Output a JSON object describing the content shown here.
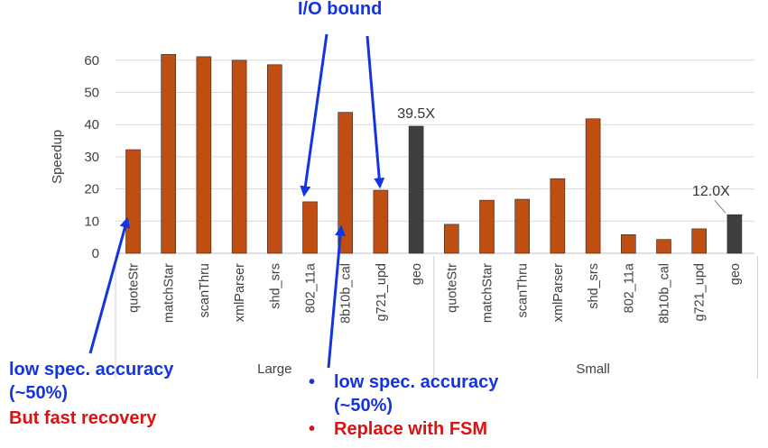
{
  "chart_data": {
    "type": "bar",
    "title": "",
    "ylabel": "Speedup",
    "ylim": [
      0,
      60
    ],
    "yticks": [
      0,
      10,
      20,
      30,
      40,
      50,
      60
    ],
    "groups": [
      {
        "name": "Large",
        "categories": [
          "quoteStr",
          "matchStar",
          "scanThru",
          "xmlParser",
          "shd_srs",
          "802_11a",
          "8b10b_cal",
          "g721_upd",
          "geo"
        ],
        "values": [
          32.2,
          61.8,
          61.1,
          60.0,
          58.6,
          16.0,
          43.8,
          19.6,
          39.5
        ]
      },
      {
        "name": "Small",
        "categories": [
          "quoteStr",
          "matchStar",
          "scanThru",
          "xmlParser",
          "shd_srs",
          "802_11a",
          "8b10b_cal",
          "g721_upd",
          "geo"
        ],
        "values": [
          9.0,
          16.5,
          16.8,
          23.2,
          41.8,
          5.8,
          4.3,
          7.6,
          12.0
        ]
      }
    ],
    "data_labels": [
      {
        "group": 0,
        "index": 8,
        "text": "39.5X"
      },
      {
        "group": 1,
        "index": 8,
        "text": "12.0X"
      }
    ],
    "grid": true,
    "legend": "none"
  },
  "colors": {
    "bar": "#bf4e12",
    "highlight_bar": "#3f3f3f",
    "bar_edge": "#2a2a2a",
    "annotation_blue": "#1434e0",
    "annotation_red": "#e01010",
    "grid": "#d9d9d9",
    "axis_text": "#404040"
  },
  "annotations": {
    "top": "I/O bound",
    "left_line1": "low spec. accuracy",
    "left_line2": "(~50%)",
    "left_line3": "But fast recovery",
    "mid_bullet1_line1": "low spec. accuracy",
    "mid_bullet1_line2": "(~50%)",
    "mid_bullet2": "Replace with FSM",
    "bullet": "•"
  }
}
